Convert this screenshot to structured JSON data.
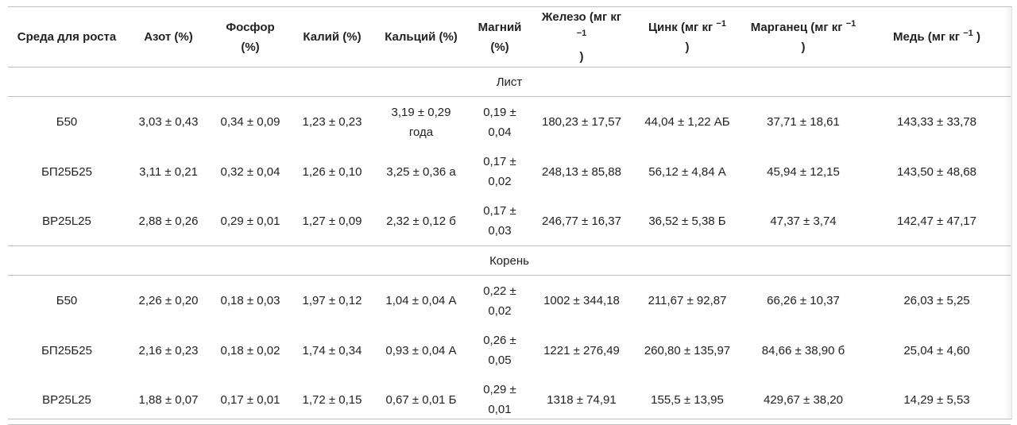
{
  "headers": {
    "medium": "Среда для роста",
    "nitrogen": "Азот (%)",
    "phosphorus": "Фосфор (%)",
    "potassium": "Калий (%)",
    "calcium": "Кальций (%)",
    "magnesium": "Магний (%)",
    "iron": "Железо (мг кг",
    "zinc": "Цинк (мг кг",
    "manganese": "Марганец (мг кг",
    "copper": "Медь (мг кг",
    "unit_sup": "−1",
    "unit_close": ")"
  },
  "sections": [
    {
      "title": "Лист",
      "rows": [
        [
          "Б50",
          "3,03 ± 0,43",
          "0,34 ± 0,09",
          "1,23 ± 0,23",
          "3,19 ± 0,29 года",
          "0,19 ± 0,04",
          "180,23 ± 17,57",
          "44,04 ± 1,22 АБ",
          "37,71 ± 18,61",
          "143,33 ± 33,78"
        ],
        [
          "БП25Б25",
          "3,11 ± 0,21",
          "0,32 ± 0,04",
          "1,26 ± 0,10",
          "3,25 ± 0,36 а",
          "0,17 ± 0,02",
          "248,13 ± 85,88",
          "56,12 ± 4,84 А",
          "45,94 ± 12,15",
          "143,50 ± 48,68"
        ],
        [
          "BP25L25",
          "2,88 ± 0,26",
          "0,29 ± 0,01",
          "1,27 ± 0,09",
          "2,32 ± 0,12 б",
          "0,17 ± 0,03",
          "246,77 ± 16,37",
          "36,52 ± 5,38 Б",
          "47,37 ± 3,74",
          "142,47 ± 47,17"
        ]
      ]
    },
    {
      "title": "Корень",
      "rows": [
        [
          "Б50",
          "2,26 ± 0,20",
          "0,18 ± 0,03",
          "1,97 ± 0,12",
          "1,04 ± 0,04 А",
          "0,22 ± 0,02",
          "1002 ± 344,18",
          "211,67 ± 92,87",
          "66,26 ± 10,37",
          "26,03 ± 5,25"
        ],
        [
          "БП25Б25",
          "2,16 ± 0,23",
          "0,18 ± 0,02",
          "1,74 ± 0,34",
          "0,93 ± 0,04 А",
          "0,26 ± 0,05",
          "1221 ± 276,49",
          "260,80 ± 135,97",
          "84,66 ± 38,90 б",
          "25,04 ± 4,60"
        ],
        [
          "BP25L25",
          "1,88 ± 0,07",
          "0,17 ± 0,01",
          "1,72 ± 0,15",
          "0,67 ± 0,01 Б",
          "0,29 ± 0,01",
          "1318 ± 74,91",
          "155,5 ± 13,95",
          "429,67 ± 38,20",
          "14,29 ± 5,53"
        ]
      ]
    }
  ]
}
